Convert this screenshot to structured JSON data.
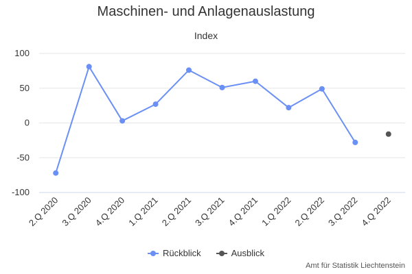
{
  "chart_data": {
    "type": "line",
    "title": "Maschinen- und Anlagenauslastung",
    "subtitle": "Index",
    "categories": [
      "2.Q 2020",
      "3.Q 2020",
      "4.Q 2020",
      "1.Q 2021",
      "2.Q 2021",
      "3.Q 2021",
      "4.Q 2021",
      "1.Q 2022",
      "2.Q 2022",
      "3.Q 2022",
      "4.Q 2022"
    ],
    "ylim": [
      -100,
      100
    ],
    "yticks": [
      100,
      50,
      0,
      -50,
      -100
    ],
    "ytick_labels": [
      "100",
      "50",
      "0",
      "-50",
      "-100"
    ],
    "grid": true,
    "legend_position": "bottom-center",
    "series": [
      {
        "name": "Rückblick",
        "color": "#6a8ff5",
        "values": [
          -72,
          81,
          3,
          27,
          76,
          51,
          60,
          22,
          49,
          -28,
          null
        ]
      },
      {
        "name": "Ausblick",
        "color": "#555555",
        "values": [
          null,
          null,
          null,
          null,
          null,
          null,
          null,
          null,
          null,
          null,
          -16
        ]
      }
    ],
    "credit": "Amt für Statistik Liechtenstein"
  }
}
